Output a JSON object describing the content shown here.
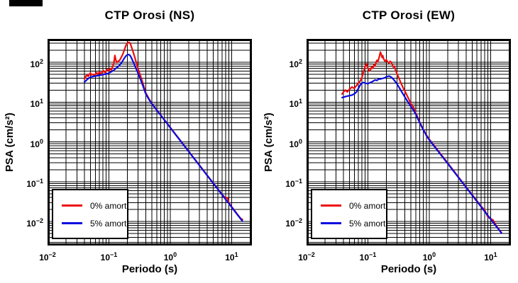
{
  "corner_mark": {
    "color": "#000000"
  },
  "legend": {
    "items": [
      {
        "label": "0% amort.",
        "color": "#ee0e0e"
      },
      {
        "label": "5% amort.",
        "color": "#0a0ae0"
      }
    ]
  },
  "chart_data": [
    {
      "type": "line",
      "title": "CTP Orosi (NS)",
      "xlabel": "Periodo (s)",
      "ylabel": "PSA (cm/s²)",
      "xscale": "log",
      "yscale": "log",
      "xlim": [
        0.01,
        21.4
      ],
      "ylim": [
        0.0025,
        386
      ],
      "x_tick_exponents": [
        -2,
        -1,
        0,
        1
      ],
      "y_tick_exponents": [
        2,
        1,
        0,
        -1,
        -2
      ],
      "grid": "log minor grid on, both axes, black",
      "legend_position": "lower-left",
      "series": [
        {
          "name": "0% amort.",
          "color": "#ee0e0e",
          "points": [
            [
              0.04,
              38
            ],
            [
              0.042,
              44
            ],
            [
              0.044,
              48
            ],
            [
              0.046,
              44
            ],
            [
              0.048,
              50
            ],
            [
              0.05,
              54
            ],
            [
              0.052,
              48
            ],
            [
              0.055,
              50
            ],
            [
              0.058,
              46
            ],
            [
              0.06,
              50
            ],
            [
              0.063,
              55
            ],
            [
              0.066,
              50
            ],
            [
              0.07,
              57
            ],
            [
              0.074,
              52
            ],
            [
              0.078,
              56
            ],
            [
              0.082,
              62
            ],
            [
              0.086,
              55
            ],
            [
              0.09,
              60
            ],
            [
              0.095,
              66
            ],
            [
              0.1,
              61
            ],
            [
              0.105,
              70
            ],
            [
              0.11,
              64
            ],
            [
              0.115,
              78
            ],
            [
              0.12,
              92
            ],
            [
              0.125,
              148
            ],
            [
              0.13,
              112
            ],
            [
              0.135,
              99
            ],
            [
              0.14,
              104
            ],
            [
              0.15,
              113
            ],
            [
              0.16,
              135
            ],
            [
              0.17,
              165
            ],
            [
              0.18,
              215
            ],
            [
              0.19,
              268
            ],
            [
              0.2,
              300
            ],
            [
              0.21,
              316
            ],
            [
              0.22,
              308
            ],
            [
              0.23,
              258
            ],
            [
              0.25,
              175
            ],
            [
              0.27,
              118
            ],
            [
              0.3,
              68
            ],
            [
              0.33,
              44
            ],
            [
              0.36,
              29
            ],
            [
              0.4,
              17
            ],
            [
              0.45,
              12
            ],
            [
              0.5,
              9.3
            ],
            [
              0.6,
              6.4
            ],
            [
              0.7,
              4.7
            ],
            [
              0.8,
              3.6
            ],
            [
              0.9,
              2.85
            ],
            [
              1.0,
              2.3
            ],
            [
              1.2,
              1.6
            ],
            [
              1.5,
              1.03
            ],
            [
              2.0,
              0.58
            ],
            [
              2.5,
              0.37
            ],
            [
              3.0,
              0.26
            ],
            [
              4.0,
              0.145
            ],
            [
              5.0,
              0.093
            ],
            [
              6.0,
              0.065
            ],
            [
              7.0,
              0.048
            ],
            [
              8.0,
              0.038
            ],
            [
              8.5,
              0.04
            ],
            [
              9.0,
              0.03
            ],
            [
              10,
              0.0235
            ],
            [
              11,
              0.0195
            ],
            [
              12,
              0.0162
            ],
            [
              13,
              0.0138
            ],
            [
              14,
              0.012
            ],
            [
              15,
              0.0112
            ]
          ]
        },
        {
          "name": "5% amort.",
          "color": "#0a0ae0",
          "points": [
            [
              0.04,
              32
            ],
            [
              0.045,
              38
            ],
            [
              0.05,
              42
            ],
            [
              0.055,
              44
            ],
            [
              0.06,
              45
            ],
            [
              0.065,
              46
            ],
            [
              0.07,
              47
            ],
            [
              0.075,
              48
            ],
            [
              0.08,
              49
            ],
            [
              0.085,
              50
            ],
            [
              0.09,
              51
            ],
            [
              0.095,
              52
            ],
            [
              0.1,
              54
            ],
            [
              0.11,
              58
            ],
            [
              0.12,
              63
            ],
            [
              0.13,
              70
            ],
            [
              0.14,
              77
            ],
            [
              0.15,
              85
            ],
            [
              0.16,
              97
            ],
            [
              0.17,
              112
            ],
            [
              0.18,
              130
            ],
            [
              0.19,
              145
            ],
            [
              0.2,
              153
            ],
            [
              0.21,
              156
            ],
            [
              0.22,
              150
            ],
            [
              0.23,
              133
            ],
            [
              0.25,
              101
            ],
            [
              0.27,
              76
            ],
            [
              0.3,
              52
            ],
            [
              0.33,
              36
            ],
            [
              0.36,
              25
            ],
            [
              0.4,
              16
            ],
            [
              0.45,
              11.6
            ],
            [
              0.5,
              9.1
            ],
            [
              0.6,
              6.3
            ],
            [
              0.7,
              4.65
            ],
            [
              0.8,
              3.55
            ],
            [
              0.9,
              2.82
            ],
            [
              1.0,
              2.27
            ],
            [
              1.2,
              1.58
            ],
            [
              1.5,
              1.01
            ],
            [
              2.0,
              0.57
            ],
            [
              2.5,
              0.365
            ],
            [
              3.0,
              0.255
            ],
            [
              4.0,
              0.143
            ],
            [
              5.0,
              0.092
            ],
            [
              6.0,
              0.064
            ],
            [
              7.0,
              0.047
            ],
            [
              8.0,
              0.036
            ],
            [
              9.0,
              0.0285
            ],
            [
              10,
              0.023
            ],
            [
              12,
              0.0159
            ],
            [
              14,
              0.0117
            ],
            [
              15,
              0.0102
            ]
          ]
        }
      ]
    },
    {
      "type": "line",
      "title": "CTP Orosi (EW)",
      "xlabel": "Periodo (s)",
      "ylabel": "PSA (cm/s²)",
      "xscale": "log",
      "yscale": "log",
      "xlim": [
        0.01,
        21.4
      ],
      "ylim": [
        0.0025,
        386
      ],
      "x_tick_exponents": [
        -2,
        -1,
        0,
        1
      ],
      "y_tick_exponents": [
        2,
        1,
        0,
        -1,
        -2
      ],
      "grid": "log minor grid on, both axes, black",
      "legend_position": "lower-left",
      "series": [
        {
          "name": "0% amort.",
          "color": "#ee0e0e",
          "points": [
            [
              0.038,
              16
            ],
            [
              0.04,
              18
            ],
            [
              0.043,
              20
            ],
            [
              0.046,
              18
            ],
            [
              0.05,
              21
            ],
            [
              0.055,
              24
            ],
            [
              0.06,
              22
            ],
            [
              0.065,
              26
            ],
            [
              0.07,
              30
            ],
            [
              0.075,
              34
            ],
            [
              0.08,
              42
            ],
            [
              0.085,
              58
            ],
            [
              0.09,
              78
            ],
            [
              0.095,
              92
            ],
            [
              0.1,
              72
            ],
            [
              0.105,
              60
            ],
            [
              0.11,
              64
            ],
            [
              0.115,
              76
            ],
            [
              0.12,
              70
            ],
            [
              0.125,
              86
            ],
            [
              0.13,
              80
            ],
            [
              0.135,
              96
            ],
            [
              0.14,
              112
            ],
            [
              0.145,
              102
            ],
            [
              0.15,
              122
            ],
            [
              0.155,
              145
            ],
            [
              0.16,
              180
            ],
            [
              0.165,
              158
            ],
            [
              0.17,
              132
            ],
            [
              0.175,
              146
            ],
            [
              0.18,
              122
            ],
            [
              0.19,
              106
            ],
            [
              0.2,
              116
            ],
            [
              0.21,
              102
            ],
            [
              0.22,
              96
            ],
            [
              0.23,
              106
            ],
            [
              0.24,
              100
            ],
            [
              0.25,
              86
            ],
            [
              0.26,
              76
            ],
            [
              0.27,
              80
            ],
            [
              0.28,
              66
            ],
            [
              0.3,
              50
            ],
            [
              0.32,
              40
            ],
            [
              0.34,
              32
            ],
            [
              0.36,
              26
            ],
            [
              0.38,
              22
            ],
            [
              0.4,
              19
            ],
            [
              0.43,
              15
            ],
            [
              0.46,
              12.2
            ],
            [
              0.5,
              9.2
            ],
            [
              0.52,
              8.4
            ],
            [
              0.55,
              7.5
            ],
            [
              0.6,
              5.3
            ],
            [
              0.65,
              4.1
            ],
            [
              0.7,
              3.1
            ],
            [
              0.8,
              2.05
            ],
            [
              0.9,
              1.48
            ],
            [
              1.0,
              1.16
            ],
            [
              1.2,
              0.81
            ],
            [
              1.5,
              0.52
            ],
            [
              2.0,
              0.295
            ],
            [
              2.5,
              0.188
            ],
            [
              3.0,
              0.13
            ],
            [
              4.0,
              0.073
            ],
            [
              5.0,
              0.047
            ],
            [
              6.0,
              0.033
            ],
            [
              7.0,
              0.024
            ],
            [
              7.5,
              0.0215
            ],
            [
              8.0,
              0.0195
            ],
            [
              8.5,
              0.016
            ],
            [
              9.0,
              0.013
            ],
            [
              10,
              0.0118
            ],
            [
              11,
              0.0108
            ],
            [
              12,
              0.0085
            ],
            [
              13,
              0.007
            ],
            [
              14,
              0.006
            ],
            [
              15,
              0.0053
            ]
          ]
        },
        {
          "name": "5% amort.",
          "color": "#0a0ae0",
          "points": [
            [
              0.038,
              13
            ],
            [
              0.045,
              14
            ],
            [
              0.05,
              14.5
            ],
            [
              0.055,
              15
            ],
            [
              0.06,
              16
            ],
            [
              0.065,
              18
            ],
            [
              0.07,
              22
            ],
            [
              0.075,
              27
            ],
            [
              0.08,
              30
            ],
            [
              0.085,
              31
            ],
            [
              0.09,
              30
            ],
            [
              0.1,
              29
            ],
            [
              0.11,
              31
            ],
            [
              0.12,
              33
            ],
            [
              0.13,
              36
            ],
            [
              0.14,
              35
            ],
            [
              0.15,
              38
            ],
            [
              0.16,
              38
            ],
            [
              0.17,
              39
            ],
            [
              0.18,
              40
            ],
            [
              0.19,
              41
            ],
            [
              0.2,
              43
            ],
            [
              0.21,
              44
            ],
            [
              0.22,
              45
            ],
            [
              0.23,
              44
            ],
            [
              0.24,
              42
            ],
            [
              0.25,
              40
            ],
            [
              0.27,
              35
            ],
            [
              0.3,
              28
            ],
            [
              0.33,
              22
            ],
            [
              0.36,
              17.5
            ],
            [
              0.4,
              13.5
            ],
            [
              0.45,
              10
            ],
            [
              0.5,
              7.8
            ],
            [
              0.55,
              6.3
            ],
            [
              0.6,
              5.0
            ],
            [
              0.7,
              3.0
            ],
            [
              0.8,
              2.0
            ],
            [
              0.9,
              1.43
            ],
            [
              1.0,
              1.12
            ],
            [
              1.2,
              0.78
            ],
            [
              1.5,
              0.5
            ],
            [
              2.0,
              0.285
            ],
            [
              2.5,
              0.182
            ],
            [
              3.0,
              0.127
            ],
            [
              4.0,
              0.0715
            ],
            [
              5.0,
              0.0458
            ],
            [
              6.0,
              0.0318
            ],
            [
              7.0,
              0.0234
            ],
            [
              8.0,
              0.0179
            ],
            [
              9.0,
              0.0142
            ],
            [
              10,
              0.0115
            ],
            [
              12,
              0.008
            ],
            [
              14,
              0.0059
            ],
            [
              15,
              0.0051
            ]
          ]
        }
      ]
    }
  ]
}
